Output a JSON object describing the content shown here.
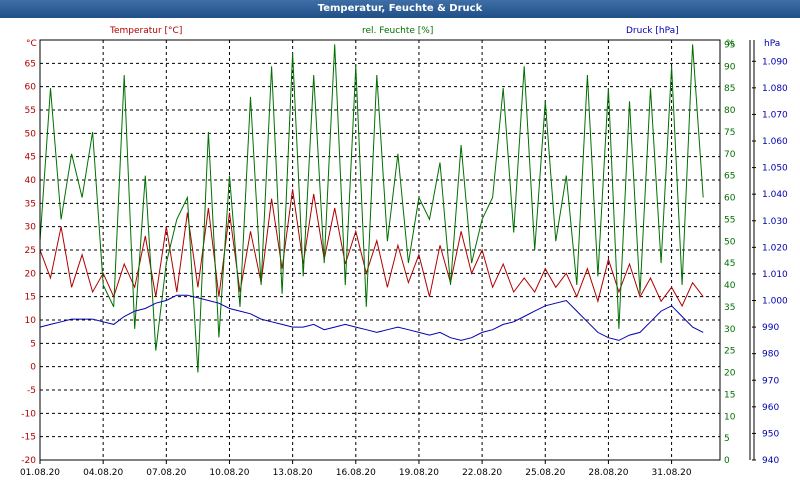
{
  "window": {
    "title": "Temperatur, Feuchte & Druck"
  },
  "colors": {
    "temperature": "#b00000",
    "humidity": "#007000",
    "pressure": "#0000b0",
    "grid": "#000000",
    "titlebar": "#2a5c95"
  },
  "chart_data": {
    "type": "line",
    "title": "Temperatur, Feuchte & Druck",
    "grid": true,
    "x_range": [
      "01.08.20",
      "02.09.20"
    ],
    "x_ticks": [
      "01.08.20",
      "04.08.20",
      "07.08.20",
      "10.08.20",
      "13.08.20",
      "16.08.20",
      "19.08.20",
      "22.08.20",
      "25.08.20",
      "28.08.20",
      "31.08.20"
    ],
    "axes": {
      "temperature": {
        "label": "Temperatur [°C]",
        "unit": "°C",
        "ylim": [
          -20,
          70
        ],
        "ticks": [
          "-20",
          "-15",
          "-10",
          "-5",
          "0",
          "5",
          "10",
          "15",
          "20",
          "25",
          "30",
          "35",
          "40",
          "45",
          "50",
          "55",
          "60",
          "65"
        ]
      },
      "humidity": {
        "label": "rel. Feuchte [%]",
        "unit": "%",
        "ylim": [
          0,
          96
        ],
        "ticks": [
          "0",
          "5",
          "10",
          "15",
          "20",
          "25",
          "30",
          "35",
          "40",
          "45",
          "50",
          "55",
          "60",
          "65",
          "70",
          "75",
          "80",
          "85",
          "90",
          "95"
        ]
      },
      "pressure": {
        "label": "Druck [hPa]",
        "unit": "hPa",
        "ylim": [
          940,
          1098
        ],
        "ticks": [
          "940",
          "950",
          "960",
          "970",
          "980",
          "990",
          "1.000",
          "1.010",
          "1.020",
          "1.030",
          "1.040",
          "1.050",
          "1.060",
          "1.070",
          "1.080",
          "1.090"
        ],
        "tick_values": [
          940,
          950,
          960,
          970,
          980,
          990,
          1000,
          1010,
          1020,
          1030,
          1040,
          1050,
          1060,
          1070,
          1080,
          1090
        ]
      }
    },
    "series": [
      {
        "name": "Temperatur [°C]",
        "axis": "temperature",
        "x": [
          0,
          0.5,
          1,
          1.5,
          2,
          2.5,
          3,
          3.5,
          4,
          4.5,
          5,
          5.5,
          6,
          6.5,
          7,
          7.5,
          8,
          8.5,
          9,
          9.5,
          10,
          10.5,
          11,
          11.5,
          12,
          12.5,
          13,
          13.5,
          14,
          14.5,
          15,
          15.5,
          16,
          16.5,
          17,
          17.5,
          18,
          18.5,
          19,
          19.5,
          20,
          20.5,
          21,
          21.5,
          22,
          22.5,
          23,
          23.5,
          24,
          24.5,
          25,
          25.5,
          26,
          26.5,
          27,
          27.5,
          28,
          28.5,
          29,
          29.5,
          30,
          30.5,
          31,
          31.5
        ],
        "values": [
          25,
          19,
          30,
          17,
          24,
          16,
          20,
          15,
          22,
          17,
          28,
          15,
          30,
          16,
          33,
          17,
          34,
          15,
          33,
          16,
          29,
          18,
          36,
          21,
          38,
          22,
          37,
          23,
          34,
          22,
          29,
          20,
          27,
          17,
          26,
          18,
          24,
          15,
          26,
          18,
          29,
          20,
          25,
          17,
          22,
          16,
          19,
          16,
          21,
          17,
          20,
          15,
          21,
          14,
          23,
          16,
          22,
          15,
          19,
          14,
          17,
          13,
          18,
          15
        ]
      },
      {
        "name": "rel. Feuchte [%]",
        "axis": "humidity",
        "x": [
          0,
          0.5,
          1,
          1.5,
          2,
          2.5,
          3,
          3.5,
          4,
          4.5,
          5,
          5.5,
          6,
          6.5,
          7,
          7.5,
          8,
          8.5,
          9,
          9.5,
          10,
          10.5,
          11,
          11.5,
          12,
          12.5,
          13,
          13.5,
          14,
          14.5,
          15,
          15.5,
          16,
          16.5,
          17,
          17.5,
          18,
          18.5,
          19,
          19.5,
          20,
          20.5,
          21,
          21.5,
          22,
          22.5,
          23,
          23.5,
          24,
          24.5,
          25,
          25.5,
          26,
          26.5,
          27,
          27.5,
          28,
          28.5,
          29,
          29.5,
          30,
          30.5,
          31,
          31.5
        ],
        "values": [
          50,
          85,
          55,
          70,
          60,
          75,
          40,
          35,
          88,
          30,
          65,
          25,
          45,
          55,
          60,
          20,
          75,
          28,
          65,
          35,
          83,
          40,
          90,
          38,
          93,
          42,
          88,
          45,
          95,
          40,
          90,
          35,
          88,
          50,
          70,
          45,
          60,
          55,
          68,
          40,
          72,
          45,
          55,
          60,
          85,
          52,
          90,
          48,
          82,
          50,
          65,
          40,
          88,
          42,
          85,
          30,
          82,
          38,
          85,
          45,
          90,
          40,
          95,
          60
        ]
      },
      {
        "name": "Druck [hPa]",
        "axis": "pressure",
        "x": [
          0,
          0.5,
          1,
          1.5,
          2,
          2.5,
          3,
          3.5,
          4,
          4.5,
          5,
          5.5,
          6,
          6.5,
          7,
          7.5,
          8,
          8.5,
          9,
          9.5,
          10,
          10.5,
          11,
          11.5,
          12,
          12.5,
          13,
          13.5,
          14,
          14.5,
          15,
          15.5,
          16,
          16.5,
          17,
          17.5,
          18,
          18.5,
          19,
          19.5,
          20,
          20.5,
          21,
          21.5,
          22,
          22.5,
          23,
          23.5,
          24,
          24.5,
          25,
          25.5,
          26,
          26.5,
          27,
          27.5,
          28,
          28.5,
          29,
          29.5,
          30,
          30.5,
          31,
          31.5
        ],
        "values": [
          990,
          991,
          992,
          993,
          993,
          993,
          992,
          991,
          994,
          996,
          997,
          999,
          1000,
          1002,
          1002,
          1001,
          1000,
          999,
          997,
          996,
          995,
          993,
          992,
          991,
          990,
          990,
          991,
          989,
          990,
          991,
          990,
          989,
          988,
          989,
          990,
          989,
          988,
          987,
          988,
          986,
          985,
          986,
          988,
          989,
          991,
          992,
          994,
          996,
          998,
          999,
          1000,
          996,
          992,
          988,
          986,
          985,
          987,
          988,
          992,
          996,
          998,
          994,
          990,
          988
        ]
      }
    ]
  }
}
